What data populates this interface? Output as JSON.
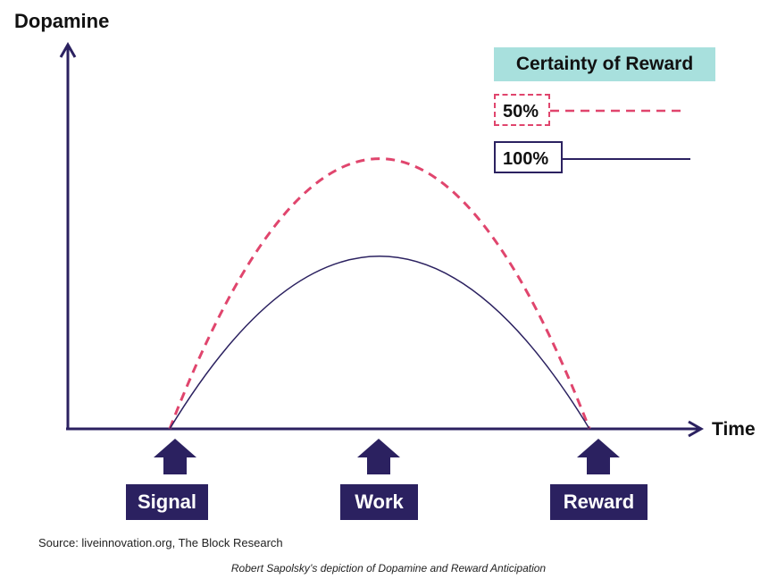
{
  "colors": {
    "axis": "#2b2160",
    "dashed": "#e0456d",
    "solid": "#2b2160",
    "legend_bg": "#a8e0dd"
  },
  "chart_data": {
    "type": "line",
    "ylabel": "Dopamine",
    "xlabel": "Time",
    "x_events": [
      "Signal",
      "Work",
      "Reward"
    ],
    "series": [
      {
        "name": "50%",
        "style": "dashed",
        "start": 0,
        "peak": 0.72,
        "end": 0
      },
      {
        "name": "100%",
        "style": "solid",
        "start": 0,
        "peak": 0.46,
        "end": 0
      }
    ],
    "legend_title": "Certainty of Reward"
  },
  "labels": {
    "y_axis": "Dopamine",
    "x_axis": "Time",
    "signal": "Signal",
    "work": "Work",
    "reward": "Reward",
    "legend_title": "Certainty of Reward",
    "legend_50": "50%",
    "legend_100": "100%"
  },
  "footer": {
    "source": "Source:  liveinnovation.org, The Block Research",
    "caption": "Robert Sapolsky’s depiction of Dopamine and Reward Anticipation"
  }
}
